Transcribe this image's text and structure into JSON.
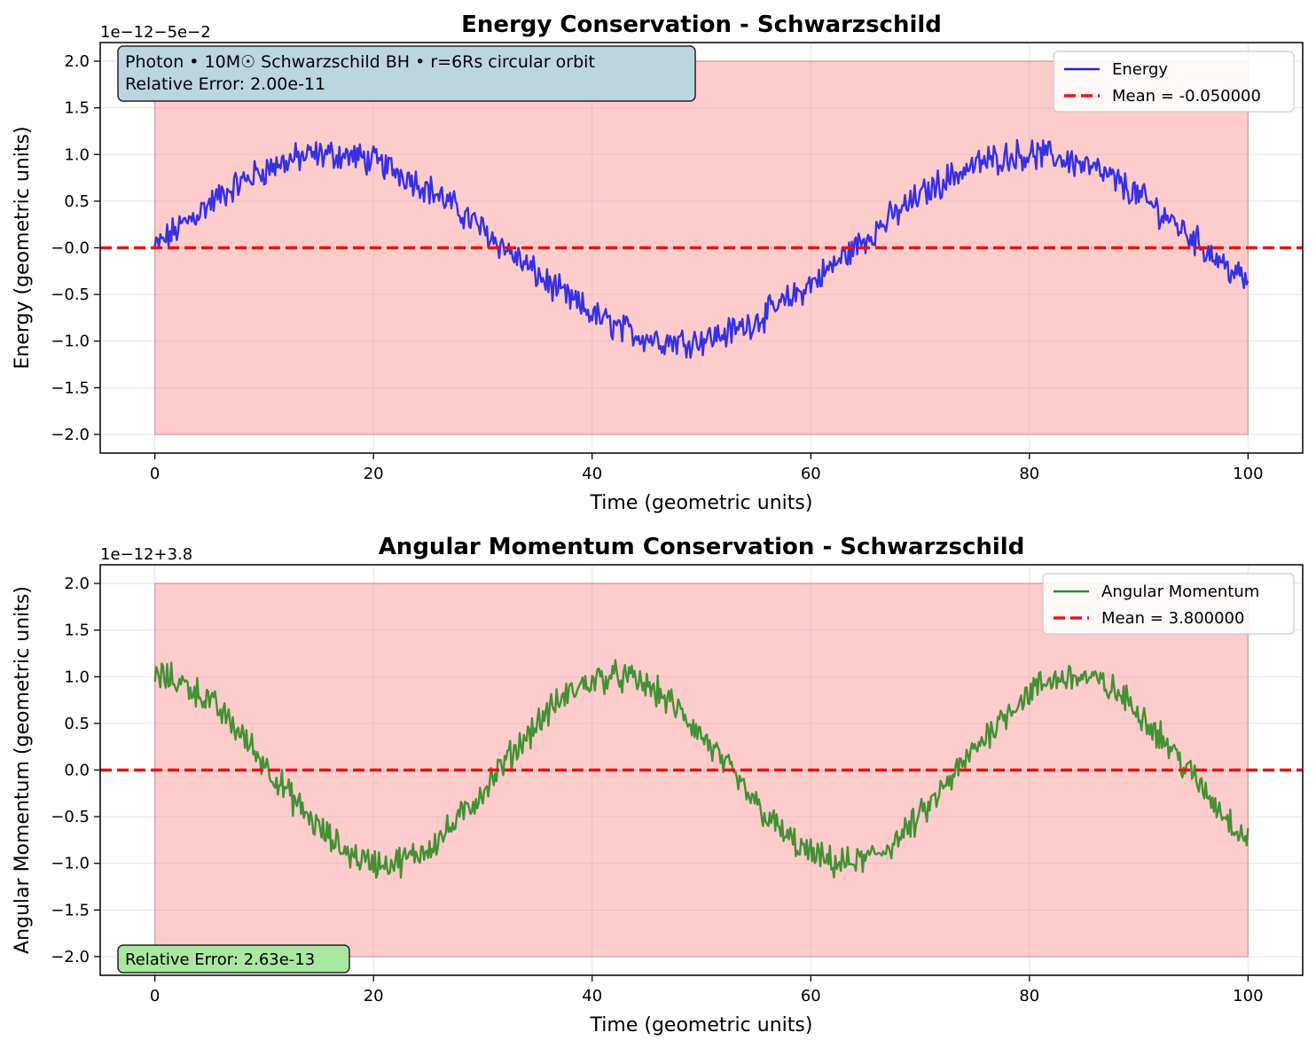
{
  "chart_data": [
    {
      "type": "line",
      "title": "Energy Conservation - Schwarzschild",
      "xlabel": "Time (geometric units)",
      "ylabel": "Energy (geometric units)",
      "y_offset_label": "1e−12−5e−2",
      "xlim": [
        -5,
        105
      ],
      "ylim": [
        -2.2,
        2.2
      ],
      "x_ticks": [
        "0",
        "20",
        "40",
        "60",
        "80",
        "100"
      ],
      "y_ticks": [
        "−2.0",
        "−1.5",
        "−1.0",
        "−0.5",
        "−0.0",
        "0.5",
        "1.0",
        "1.5",
        "2.0"
      ],
      "grid": true,
      "legend_position": "top-right",
      "band": {
        "x": [
          0,
          100
        ],
        "y": [
          -2.0,
          2.0
        ],
        "color": "#ffcccc"
      },
      "series": [
        {
          "name": "Energy",
          "color": "#2020e8",
          "style": "solid",
          "shape": "sine",
          "amplitude": 1.0,
          "period": 64,
          "phase": 0.0,
          "noise": 0.13,
          "x": [
            0,
            100
          ]
        },
        {
          "name": "Mean = -0.050000",
          "color": "#ee1111",
          "style": "dashed",
          "value": 0.0
        }
      ],
      "annotation": {
        "lines": [
          "Photon • 10M☉ Schwarzschild BH • r=6Rs circular orbit",
          "Relative Error: 2.00e-11"
        ],
        "bg": "#bcd6e0"
      }
    },
    {
      "type": "line",
      "title": "Angular Momentum Conservation - Schwarzschild",
      "xlabel": "Time (geometric units)",
      "ylabel": "Angular Momentum (geometric units)",
      "y_offset_label": "1e−12+3.8",
      "xlim": [
        -5,
        105
      ],
      "ylim": [
        -2.2,
        2.2
      ],
      "x_ticks": [
        "0",
        "20",
        "40",
        "60",
        "80",
        "100"
      ],
      "y_ticks": [
        "−2.0",
        "−1.5",
        "−1.0",
        "−0.5",
        "0.0",
        "0.5",
        "1.0",
        "1.5",
        "2.0"
      ],
      "grid": true,
      "legend_position": "top-right",
      "band": {
        "x": [
          0,
          100
        ],
        "y": [
          -2.0,
          2.0
        ],
        "color": "#ffcccc"
      },
      "series": [
        {
          "name": "Angular Momentum",
          "color": "#2e8b22",
          "style": "solid",
          "shape": "cosine",
          "amplitude": 1.0,
          "period": 42,
          "phase": 0.0,
          "noise": 0.13,
          "x": [
            0,
            100
          ]
        },
        {
          "name": "Mean = 3.800000",
          "color": "#ee1111",
          "style": "dashed",
          "value": 0.0
        }
      ],
      "annotation": {
        "lines": [
          "Relative Error: 2.63e-13"
        ],
        "bg": "#a8e8a0"
      }
    }
  ]
}
